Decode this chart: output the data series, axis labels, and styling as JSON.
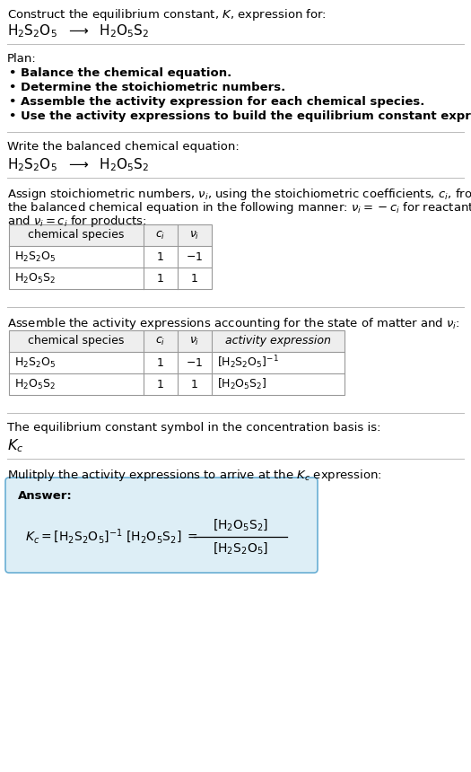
{
  "title_line1": "Construct the equilibrium constant, $K$, expression for:",
  "reaction_equation": "H$_2$S$_2$O$_5$  $\\longrightarrow$  H$_2$O$_5$S$_2$",
  "plan_header": "Plan:",
  "plan_bullets": [
    "• Balance the chemical equation.",
    "• Determine the stoichiometric numbers.",
    "• Assemble the activity expression for each chemical species.",
    "• Use the activity expressions to build the equilibrium constant expression."
  ],
  "section2_header": "Write the balanced chemical equation:",
  "section2_eq": "H$_2$S$_2$O$_5$  $\\longrightarrow$  H$_2$O$_5$S$_2$",
  "section3_header_l1": "Assign stoichiometric numbers, $\\nu_i$, using the stoichiometric coefficients, $c_i$, from",
  "section3_header_l2": "the balanced chemical equation in the following manner: $\\nu_i = -c_i$ for reactants",
  "section3_header_l3": "and $\\nu_i = c_i$ for products:",
  "table1_cols": [
    "chemical species",
    "$c_i$",
    "$\\nu_i$"
  ],
  "table1_rows": [
    [
      "H$_2$S$_2$O$_5$",
      "1",
      "$-1$"
    ],
    [
      "H$_2$O$_5$S$_2$",
      "1",
      "1"
    ]
  ],
  "section4_header": "Assemble the activity expressions accounting for the state of matter and $\\nu_i$:",
  "table2_cols": [
    "chemical species",
    "$c_i$",
    "$\\nu_i$",
    "activity expression"
  ],
  "table2_rows": [
    [
      "H$_2$S$_2$O$_5$",
      "1",
      "$-1$",
      "[H$_2$S$_2$O$_5$]$^{-1}$"
    ],
    [
      "H$_2$O$_5$S$_2$",
      "1",
      "1",
      "[H$_2$O$_5$S$_2$]"
    ]
  ],
  "section5_header": "The equilibrium constant symbol in the concentration basis is:",
  "section5_symbol": "$K_c$",
  "section6_header": "Mulitply the activity expressions to arrive at the $K_c$ expression:",
  "answer_label": "Answer:",
  "answer_box_color": "#ddeef6",
  "answer_box_border": "#6aafd4",
  "bg_color": "#ffffff",
  "text_color": "#000000",
  "table_border_color": "#999999",
  "table_header_bg": "#eeeeee",
  "separator_color": "#bbbbbb",
  "fs": 9.5,
  "tfs": 9.0
}
